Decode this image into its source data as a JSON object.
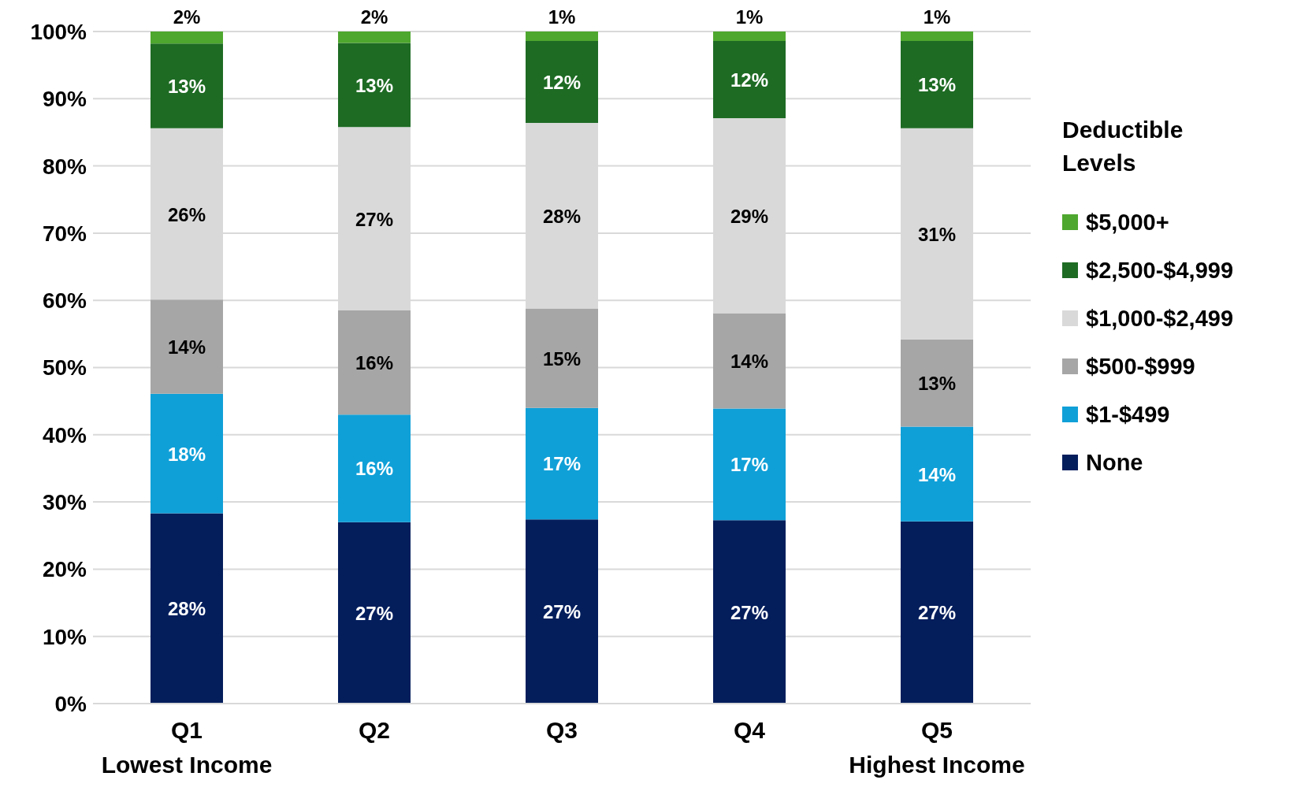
{
  "chart_data": {
    "type": "bar",
    "stacked": true,
    "categories": [
      "Q1\nLowest Income",
      "Q2",
      "Q3",
      "Q4",
      "Q5\nHighest Income"
    ],
    "series": [
      {
        "name": "None",
        "color": "#041e5c",
        "values": [
          28.3,
          27,
          27.4,
          27.3,
          27.1
        ],
        "value_labels": [
          "28%",
          "27%",
          "27%",
          "27%",
          "27%"
        ]
      },
      {
        "name": "$1-$499",
        "color": "#10a0d8",
        "values": [
          17.8,
          16,
          16.6,
          16.6,
          14.1
        ],
        "value_labels": [
          "18%",
          "16%",
          "17%",
          "17%",
          "14%"
        ]
      },
      {
        "name": "$500-$999",
        "color": "#a6a6a6",
        "values": [
          14,
          15.5,
          14.8,
          14.2,
          13
        ],
        "value_labels": [
          "14%",
          "16%",
          "15%",
          "14%",
          "13%"
        ]
      },
      {
        "name": "$1,000-$2,499",
        "color": "#d9d9d9",
        "values": [
          25.5,
          27.3,
          27.6,
          29,
          31.4
        ],
        "value_labels": [
          "26%",
          "27%",
          "28%",
          "29%",
          "31%"
        ]
      },
      {
        "name": "$2,500-$4,999",
        "color": "#1e6b24",
        "values": [
          12.6,
          12.5,
          12.2,
          11.5,
          13
        ],
        "value_labels": [
          "13%",
          "13%",
          "12%",
          "12%",
          "13%"
        ]
      },
      {
        "name": "$5,000+",
        "color": "#4ea72e",
        "values": [
          1.8,
          1.7,
          1.4,
          1.4,
          1.4
        ],
        "value_labels": [
          "2%",
          "2%",
          "1%",
          "1%",
          "1%"
        ]
      }
    ],
    "legend_title": "Deductible Levels",
    "legend": "right",
    "grid": "y",
    "ylim": [
      0,
      100
    ],
    "yticks": [
      {
        "value": 0,
        "label": "0%"
      },
      {
        "value": 10,
        "label": "10%"
      },
      {
        "value": 20,
        "label": "20%"
      },
      {
        "value": 30,
        "label": "30%"
      },
      {
        "value": 40,
        "label": "40%"
      },
      {
        "value": 50,
        "label": "50%"
      },
      {
        "value": 60,
        "label": "60%"
      },
      {
        "value": 70,
        "label": "70%"
      },
      {
        "value": 80,
        "label": "80%"
      },
      {
        "value": 90,
        "label": "90%"
      },
      {
        "value": 100,
        "label": "100%"
      }
    ]
  }
}
